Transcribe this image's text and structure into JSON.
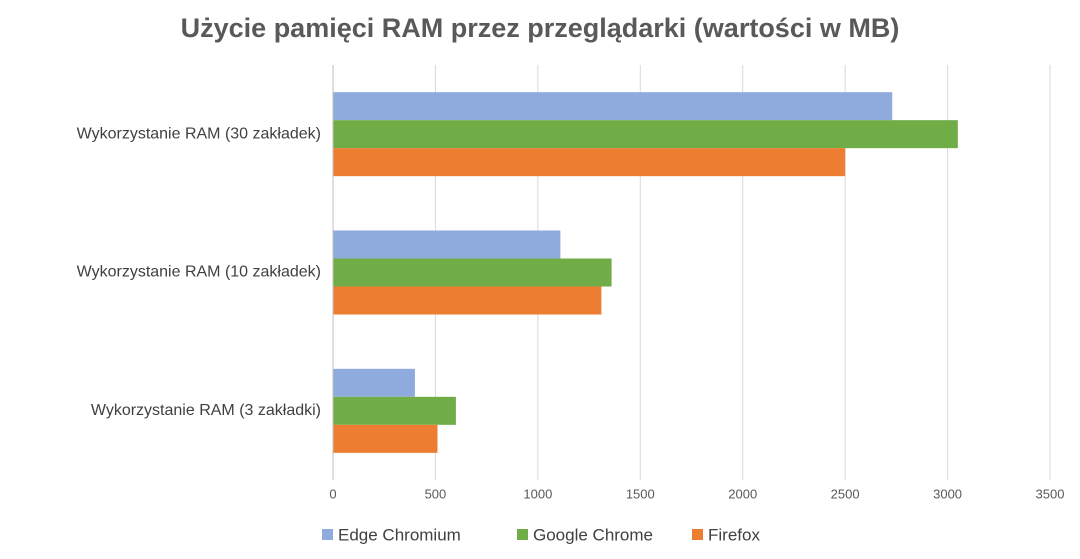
{
  "chart_data": {
    "type": "hbar",
    "title": "Użycie pamięci RAM przez przeglądarki (wartości w MB)",
    "categories": [
      "Wykorzystanie RAM (30 zakładek)",
      "Wykorzystanie RAM (10 zakładek)",
      "Wykorzystanie RAM (3 zakładki)"
    ],
    "series": [
      {
        "name": "Edge Chromium",
        "color": "#8faadc",
        "values": [
          2730,
          1110,
          400
        ]
      },
      {
        "name": "Google Chrome",
        "color": "#70ad47",
        "values": [
          3050,
          1360,
          600
        ]
      },
      {
        "name": "Firefox",
        "color": "#ed7d31",
        "values": [
          2500,
          1310,
          510
        ]
      }
    ],
    "xlim": [
      0,
      3500
    ],
    "xticks": [
      0,
      500,
      1000,
      1500,
      2000,
      2500,
      3000,
      3500
    ],
    "grid": true,
    "legend": "bottom"
  }
}
